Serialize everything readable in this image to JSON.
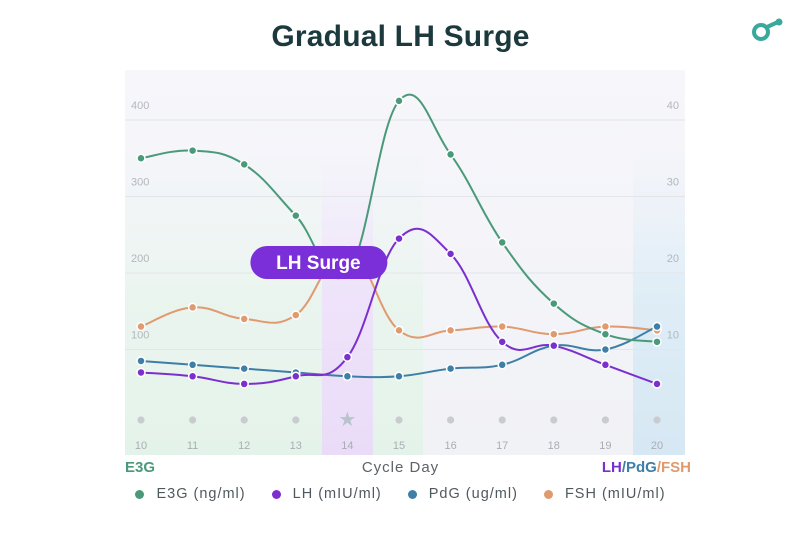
{
  "page": {
    "title": "Gradual LH Surge",
    "logo_icon": "app-logo-icon"
  },
  "colors": {
    "e3g": "#4a9a7a",
    "lh": "#7b2fcf",
    "pdg": "#3d7fa6",
    "fsh": "#e09a6e",
    "title": "#1c3a3e"
  },
  "chart_data": {
    "type": "line",
    "title": "Gradual LH Surge",
    "xlabel": "Cycle Day",
    "left_axis_label": "E3G",
    "right_axis_label_parts": [
      "LH",
      "/",
      "PdG",
      "/",
      "FSH"
    ],
    "categories": [
      "10",
      "11",
      "12",
      "13",
      "14",
      "15",
      "16",
      "17",
      "18",
      "19",
      "20"
    ],
    "left_axis": {
      "ylim": [
        0,
        400
      ],
      "ticks": [
        "100",
        "200",
        "300",
        "400"
      ]
    },
    "right_axis": {
      "ylim": [
        0,
        40
      ],
      "ticks": [
        "10",
        "20",
        "30",
        "40"
      ]
    },
    "grid": true,
    "highlight_marker": {
      "day": "14",
      "symbol": "★"
    },
    "annotation": {
      "text": "LH Surge",
      "day": "14"
    },
    "series": [
      {
        "name": "E3G (ng/ml)",
        "axis": "left",
        "color": "#4a9a7a",
        "values": [
          350,
          360,
          342,
          275,
          200,
          425,
          355,
          240,
          160,
          120,
          110
        ]
      },
      {
        "name": "LH (mIU/ml)",
        "axis": "right",
        "color": "#7b2fcf",
        "values": [
          7,
          6.5,
          5.5,
          6.5,
          9,
          24.5,
          22.5,
          11,
          10.5,
          8,
          5.5
        ]
      },
      {
        "name": "PdG (ug/ml)",
        "axis": "right",
        "color": "#3d7fa6",
        "values": [
          8.5,
          8,
          7.5,
          7,
          6.5,
          6.5,
          7.5,
          8,
          10.5,
          10,
          13
        ]
      },
      {
        "name": "FSH (mIU/ml)",
        "axis": "right",
        "color": "#e09a6e",
        "values": [
          13,
          15.5,
          14,
          14.5,
          23,
          12.5,
          12.5,
          13,
          12,
          13,
          12.5
        ]
      }
    ],
    "legend": {
      "placement": "bottom"
    }
  }
}
